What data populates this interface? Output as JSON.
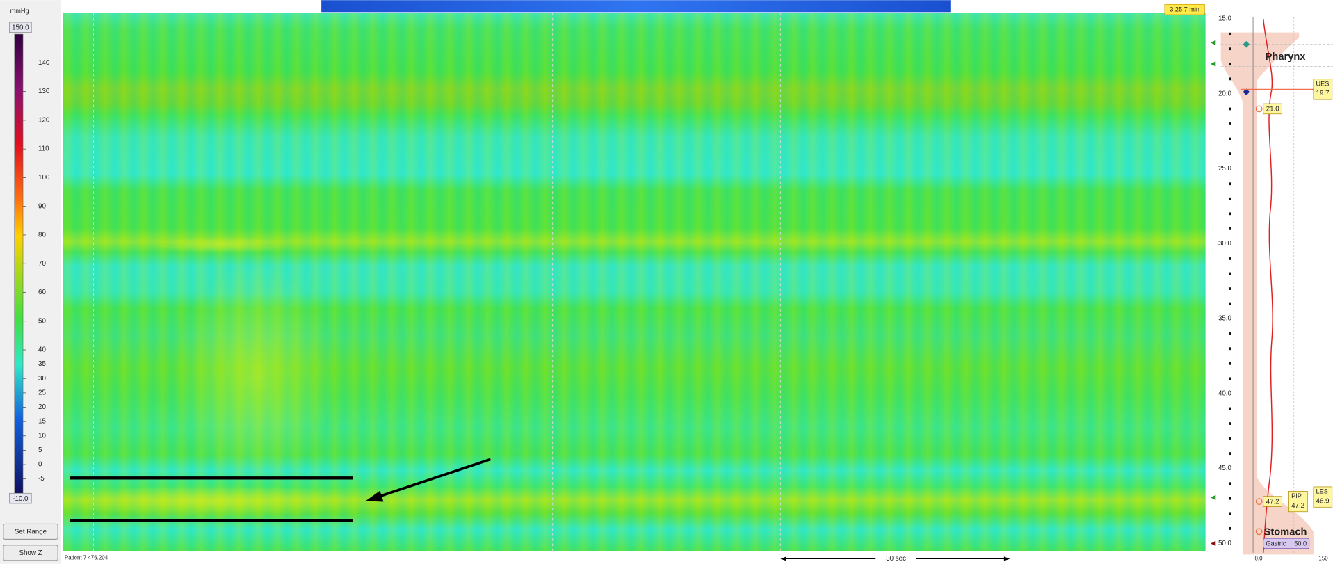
{
  "colorbar": {
    "unit": "mmHg",
    "max": {
      "value": 150,
      "label": "150.0"
    },
    "min": {
      "value": -10,
      "label": "-10.0"
    },
    "ticks": [
      140,
      130,
      120,
      110,
      100,
      90,
      80,
      70,
      60,
      50,
      40,
      35,
      30,
      25,
      20,
      15,
      10,
      5,
      0,
      -5
    ]
  },
  "buttons": [
    "Set Range",
    "Show Z"
  ],
  "time_label": "3:25.7 min",
  "patient_label": "Patient 7 476.204",
  "scale_label": "30 sec",
  "depth_axis": {
    "ticks": [
      {
        "value": 15,
        "label": "15.0"
      },
      {
        "value": 20,
        "label": "20.0"
      },
      {
        "value": 25,
        "label": "25.0"
      },
      {
        "value": 30,
        "label": "30.0"
      },
      {
        "value": 35,
        "label": "35.0"
      },
      {
        "value": 40,
        "label": "40.0"
      },
      {
        "value": 45,
        "label": "45.0"
      },
      {
        "value": 50,
        "label": "50.0"
      }
    ]
  },
  "regions": [
    "Pharynx",
    "Stomach"
  ],
  "markers": [
    {
      "name": "UES",
      "value": 19.7
    },
    {
      "name": "LES",
      "value": 46.9
    },
    {
      "name": "PIP",
      "value": 47.2
    }
  ],
  "tags": [
    {
      "value": 21,
      "label": "21.0"
    },
    {
      "value": 47.2,
      "label": "47.2"
    }
  ],
  "gastric": {
    "name": "Gastric",
    "value": {
      "value": 50,
      "label": "50.0"
    }
  },
  "pressure_axis": [
    {
      "value": 0,
      "label": "0.0"
    },
    150
  ]
}
